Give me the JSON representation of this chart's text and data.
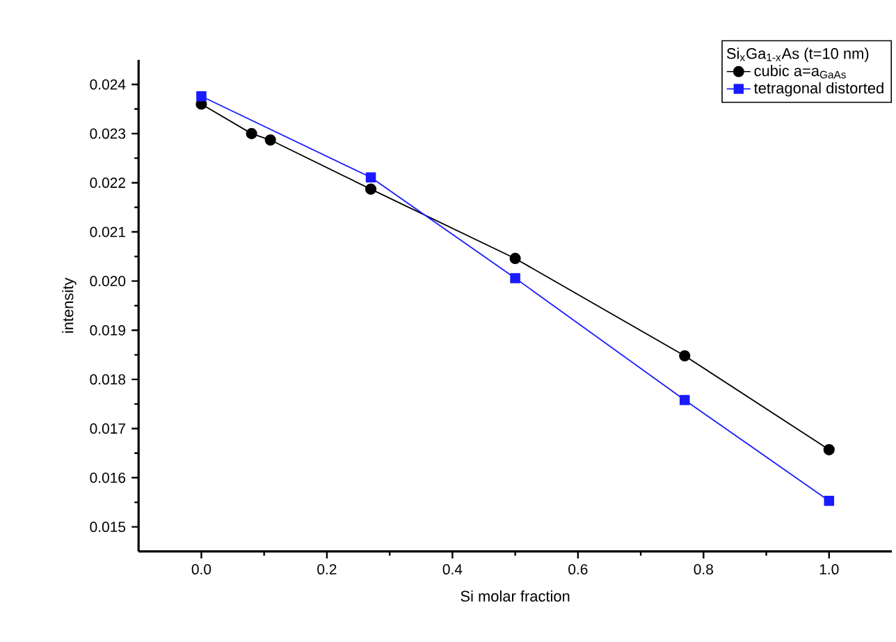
{
  "chart_data": {
    "type": "line",
    "xlabel": "Si molar fraction",
    "ylabel": "intensity",
    "legend_title": "Si$_{x}$Ga$_{1-x}$As (t=10 nm)",
    "series": [
      {
        "name": "cubic a=a$_{GaAs}$",
        "color": "#000000",
        "marker": "circle",
        "x": [
          0,
          0.08,
          0.11,
          0.27,
          0.5,
          0.77,
          1.0
        ],
        "values": [
          0.0236,
          0.023,
          0.02287,
          0.02187,
          0.02046,
          0.01848,
          0.01657
        ]
      },
      {
        "name": "tetragonal distorted",
        "color": "#1a1aff",
        "marker": "square",
        "x": [
          0,
          0.27,
          0.5,
          0.77,
          1.0
        ],
        "values": [
          0.02376,
          0.02211,
          0.02006,
          0.01758,
          0.01553
        ]
      }
    ],
    "xlim": [
      -0.1,
      1.1
    ],
    "xticks": [
      {
        "value": 0.0,
        "label": "0.0"
      },
      {
        "value": 0.2,
        "label": "0.2"
      },
      {
        "value": 0.4,
        "label": "0.4"
      },
      {
        "value": 0.6,
        "label": "0.6"
      },
      {
        "value": 0.8,
        "label": "0.8"
      },
      {
        "value": 1.0,
        "label": "1.0"
      }
    ],
    "ylim": [
      0.0145,
      0.0245
    ],
    "yticks": [
      {
        "value": 0.015,
        "label": "0.015"
      },
      {
        "value": 0.016,
        "label": "0.016"
      },
      {
        "value": 0.017,
        "label": "0.017"
      },
      {
        "value": 0.018,
        "label": "0.018"
      },
      {
        "value": 0.019,
        "label": "0.019"
      },
      {
        "value": 0.02,
        "label": "0.020"
      },
      {
        "value": 0.021,
        "label": "0.021"
      },
      {
        "value": 0.022,
        "label": "0.022"
      },
      {
        "value": 0.023,
        "label": "0.023"
      },
      {
        "value": 0.024,
        "label": "0.024"
      }
    ],
    "grid": false,
    "legend": "top right",
    "line_style": "solid"
  }
}
